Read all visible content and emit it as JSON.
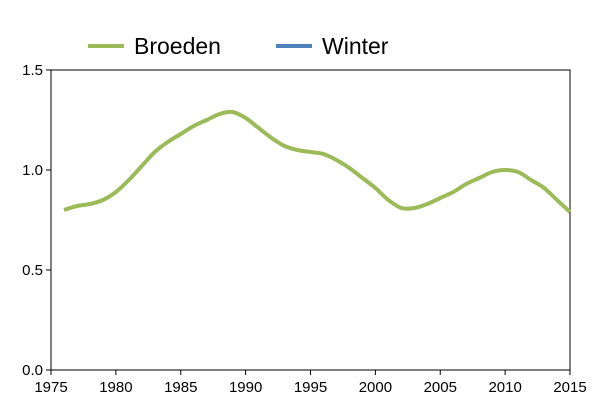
{
  "chart_data": {
    "type": "line",
    "title": "",
    "xlabel": "",
    "ylabel": "",
    "xlim": [
      1975,
      2015
    ],
    "ylim": [
      0.0,
      1.5
    ],
    "x_ticks": [
      "1975",
      "1980",
      "1985",
      "1990",
      "1995",
      "2000",
      "2005",
      "2010",
      "2015"
    ],
    "y_ticks": [
      "0.0",
      "0.5",
      "1.0",
      "1.5"
    ],
    "grid": false,
    "legend_position": "top",
    "series": [
      {
        "name": "Broeden",
        "color": "#9bbb59",
        "x": [
          1976,
          1977,
          1978,
          1979,
          1980,
          1981,
          1982,
          1983,
          1984,
          1985,
          1986,
          1987,
          1988,
          1989,
          1990,
          1991,
          1992,
          1993,
          1994,
          1995,
          1996,
          1997,
          1998,
          1999,
          2000,
          2001,
          2002,
          2003,
          2004,
          2005,
          2006,
          2007,
          2008,
          2009,
          2010,
          2011,
          2012,
          2013,
          2014,
          2015
        ],
        "y": [
          0.8,
          0.82,
          0.83,
          0.85,
          0.89,
          0.95,
          1.02,
          1.09,
          1.14,
          1.18,
          1.22,
          1.25,
          1.28,
          1.29,
          1.26,
          1.21,
          1.16,
          1.12,
          1.1,
          1.09,
          1.08,
          1.05,
          1.01,
          0.96,
          0.91,
          0.85,
          0.81,
          0.81,
          0.83,
          0.86,
          0.89,
          0.93,
          0.96,
          0.99,
          1.0,
          0.99,
          0.95,
          0.91,
          0.85,
          0.79
        ]
      },
      {
        "name": "Winter",
        "color": "#4f81bd",
        "x": [],
        "y": []
      }
    ]
  }
}
